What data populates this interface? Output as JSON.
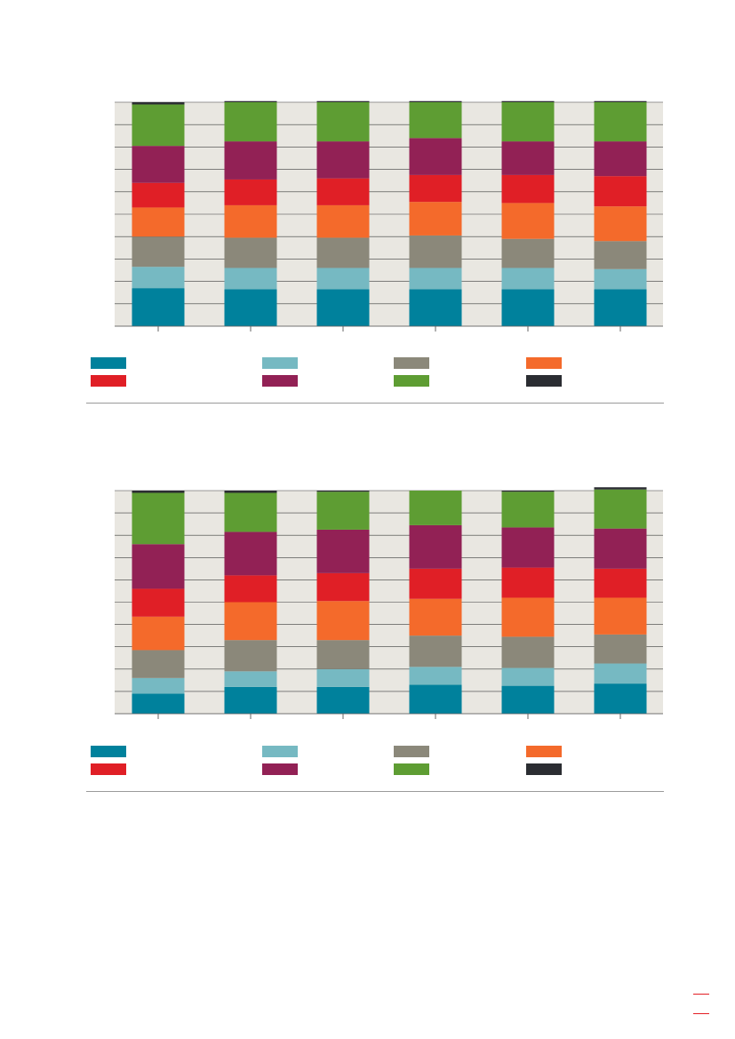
{
  "colors": {
    "plot_bg": "#e9e7e1",
    "gridline": "#3c3c3c",
    "accent": "#e31e24"
  },
  "chart_data": [
    {
      "type": "bar",
      "stacked": true,
      "ylim": [
        0,
        100
      ],
      "grid": true,
      "legend_placement": "bottom",
      "categories": [
        "",
        "",
        "",
        "",
        "",
        ""
      ],
      "series": [
        {
          "color": "#00819c",
          "values": [
            17,
            16.5,
            16.5,
            16.5,
            16.5,
            16.5
          ]
        },
        {
          "color": "#76b9c2",
          "values": [
            9.5,
            9.5,
            9.5,
            9.5,
            9.5,
            9
          ]
        },
        {
          "color": "#8b887a",
          "values": [
            13.5,
            13.5,
            13.5,
            14.5,
            13,
            12.5
          ]
        },
        {
          "color": "#f46a2b",
          "values": [
            13,
            14.5,
            14.5,
            15,
            16,
            15.5
          ]
        },
        {
          "color": "#e01f26",
          "values": [
            11,
            11.5,
            12,
            12,
            12.5,
            13.5
          ]
        },
        {
          "color": "#922155",
          "values": [
            16.5,
            17,
            16.5,
            16.5,
            15,
            15.5
          ]
        },
        {
          "color": "#5e9d33",
          "values": [
            18.5,
            17.5,
            17.5,
            16,
            17.5,
            17.5
          ]
        },
        {
          "color": "#2b2d32",
          "values": [
            1,
            0.5,
            0.5,
            0.5,
            0.5,
            0.5
          ]
        }
      ]
    },
    {
      "type": "bar",
      "stacked": true,
      "ylim": [
        0,
        100
      ],
      "grid": true,
      "legend_placement": "bottom",
      "categories": [
        "",
        "",
        "",
        "",
        "",
        ""
      ],
      "series": [
        {
          "color": "#00819c",
          "values": [
            9,
            12,
            12,
            13,
            12.5,
            13.5
          ]
        },
        {
          "color": "#76b9c2",
          "values": [
            7,
            7,
            8,
            8,
            8,
            9
          ]
        },
        {
          "color": "#8b887a",
          "values": [
            12.5,
            14,
            13,
            14,
            14,
            13
          ]
        },
        {
          "color": "#f46a2b",
          "values": [
            15,
            17,
            17.5,
            16.5,
            17.5,
            16.5
          ]
        },
        {
          "color": "#e01f26",
          "values": [
            12.5,
            12,
            12.5,
            13.5,
            13.5,
            13
          ]
        },
        {
          "color": "#922155",
          "values": [
            20,
            19.5,
            19.5,
            19.5,
            18,
            18
          ]
        },
        {
          "color": "#5e9d33",
          "values": [
            23,
            17.5,
            17,
            15.5,
            16,
            17.5
          ]
        },
        {
          "color": "#2b2d32",
          "values": [
            1,
            1,
            0.5,
            0,
            0.5,
            1
          ]
        }
      ]
    }
  ],
  "page": {
    "marks": [
      "",
      ""
    ]
  }
}
